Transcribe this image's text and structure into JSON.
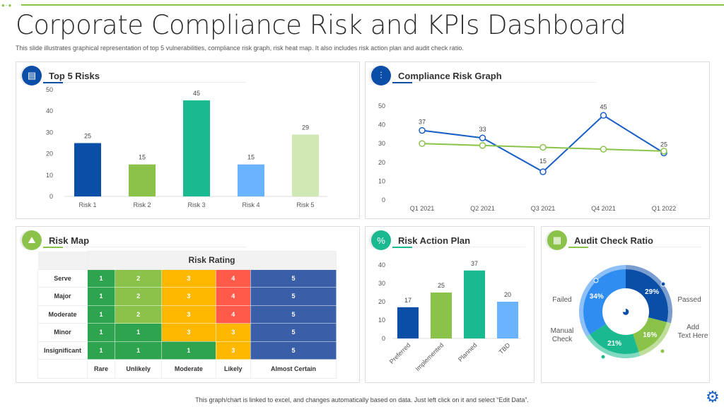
{
  "title": "Corporate Compliance Risk and KPIs Dashboard",
  "subtitle": "This slide illustrates graphical representation of top 5 vulnerabilities, compliance risk graph, risk heat map. It also includes risk action plan and audit check ratio.",
  "footer": "This graph/chart is linked to excel, and changes automatically based on data. Just left click on it and select “Edit Data”.",
  "colors": {
    "accent_green": "#8bc34a",
    "dark_blue": "#0b4ea8",
    "teal": "#1ab98f",
    "light_blue": "#6ab4ff",
    "pale_green": "#cfe8b4"
  },
  "panels": {
    "top5": "Top 5 Risks",
    "graph": "Compliance Risk Graph",
    "map": "Risk Map",
    "action": "Risk Action Plan",
    "audit": "Audit Check Ratio"
  },
  "chart_data": [
    {
      "type": "bar",
      "title": "Top 5 Risks",
      "categories": [
        "Risk 1",
        "Risk 2",
        "Risk 3",
        "Risk 4",
        "Risk 5"
      ],
      "values": [
        25,
        15,
        45,
        15,
        29
      ],
      "ylim": [
        0,
        50
      ],
      "yticks": [
        0,
        10,
        20,
        30,
        40,
        50
      ],
      "colors": [
        "#0b4ea8",
        "#8bc34a",
        "#1ab98f",
        "#6ab4ff",
        "#cfe8b4"
      ]
    },
    {
      "type": "line",
      "title": "Compliance Risk Graph",
      "categories": [
        "Q1 2021",
        "Q2 2021",
        "Q3 2021",
        "Q4 2021",
        "Q1 2022"
      ],
      "ylim": [
        0,
        50
      ],
      "yticks": [
        0,
        10,
        20,
        30,
        40,
        50
      ],
      "series": [
        {
          "values": [
            37,
            33,
            15,
            45,
            25
          ],
          "color": "#1a5fc4",
          "labeled": true
        },
        {
          "values": [
            30,
            29,
            28,
            27,
            26
          ],
          "color": "#8bc34a",
          "labeled": false
        }
      ]
    },
    {
      "type": "bar",
      "title": "Risk Action Plan",
      "categories": [
        "Preferred",
        "Implemented",
        "Planned",
        "TBD"
      ],
      "values": [
        17,
        25,
        37,
        20
      ],
      "ylim": [
        0,
        40
      ],
      "yticks": [
        0,
        10,
        20,
        30,
        40
      ],
      "colors": [
        "#0b4ea8",
        "#8bc34a",
        "#1ab98f",
        "#6ab4ff"
      ]
    },
    {
      "type": "pie",
      "title": "Audit Check Ratio",
      "categories": [
        "Passed",
        "Add Text Here",
        "Manual Check",
        "Failed"
      ],
      "values": [
        29,
        16,
        21,
        34
      ],
      "colors": [
        "#0b4ea8",
        "#8bc34a",
        "#1ab98f",
        "#2f8cf0"
      ]
    }
  ],
  "risk_map": {
    "header": "Risk Rating",
    "rows": [
      "Serve",
      "Major",
      "Moderate",
      "Minor",
      "Insignificant"
    ],
    "cols": [
      "Rare",
      "Unlikely",
      "Moderate",
      "Likely",
      "Almost Certain"
    ],
    "cells": [
      [
        1,
        2,
        3,
        4,
        5
      ],
      [
        1,
        2,
        3,
        4,
        5
      ],
      [
        1,
        2,
        3,
        4,
        5
      ],
      [
        1,
        1,
        3,
        3,
        5
      ],
      [
        1,
        1,
        1,
        3,
        5
      ]
    ],
    "level_colors": {
      "1": "#2ea44f",
      "2": "#8bc34a",
      "3": "#ffb800",
      "4": "#ff5a4a",
      "5": "#3a5ea8"
    }
  },
  "audit_labels": {
    "passed": "Passed",
    "add": "Add Text Here",
    "manual": "Manual Check",
    "failed": "Failed"
  }
}
